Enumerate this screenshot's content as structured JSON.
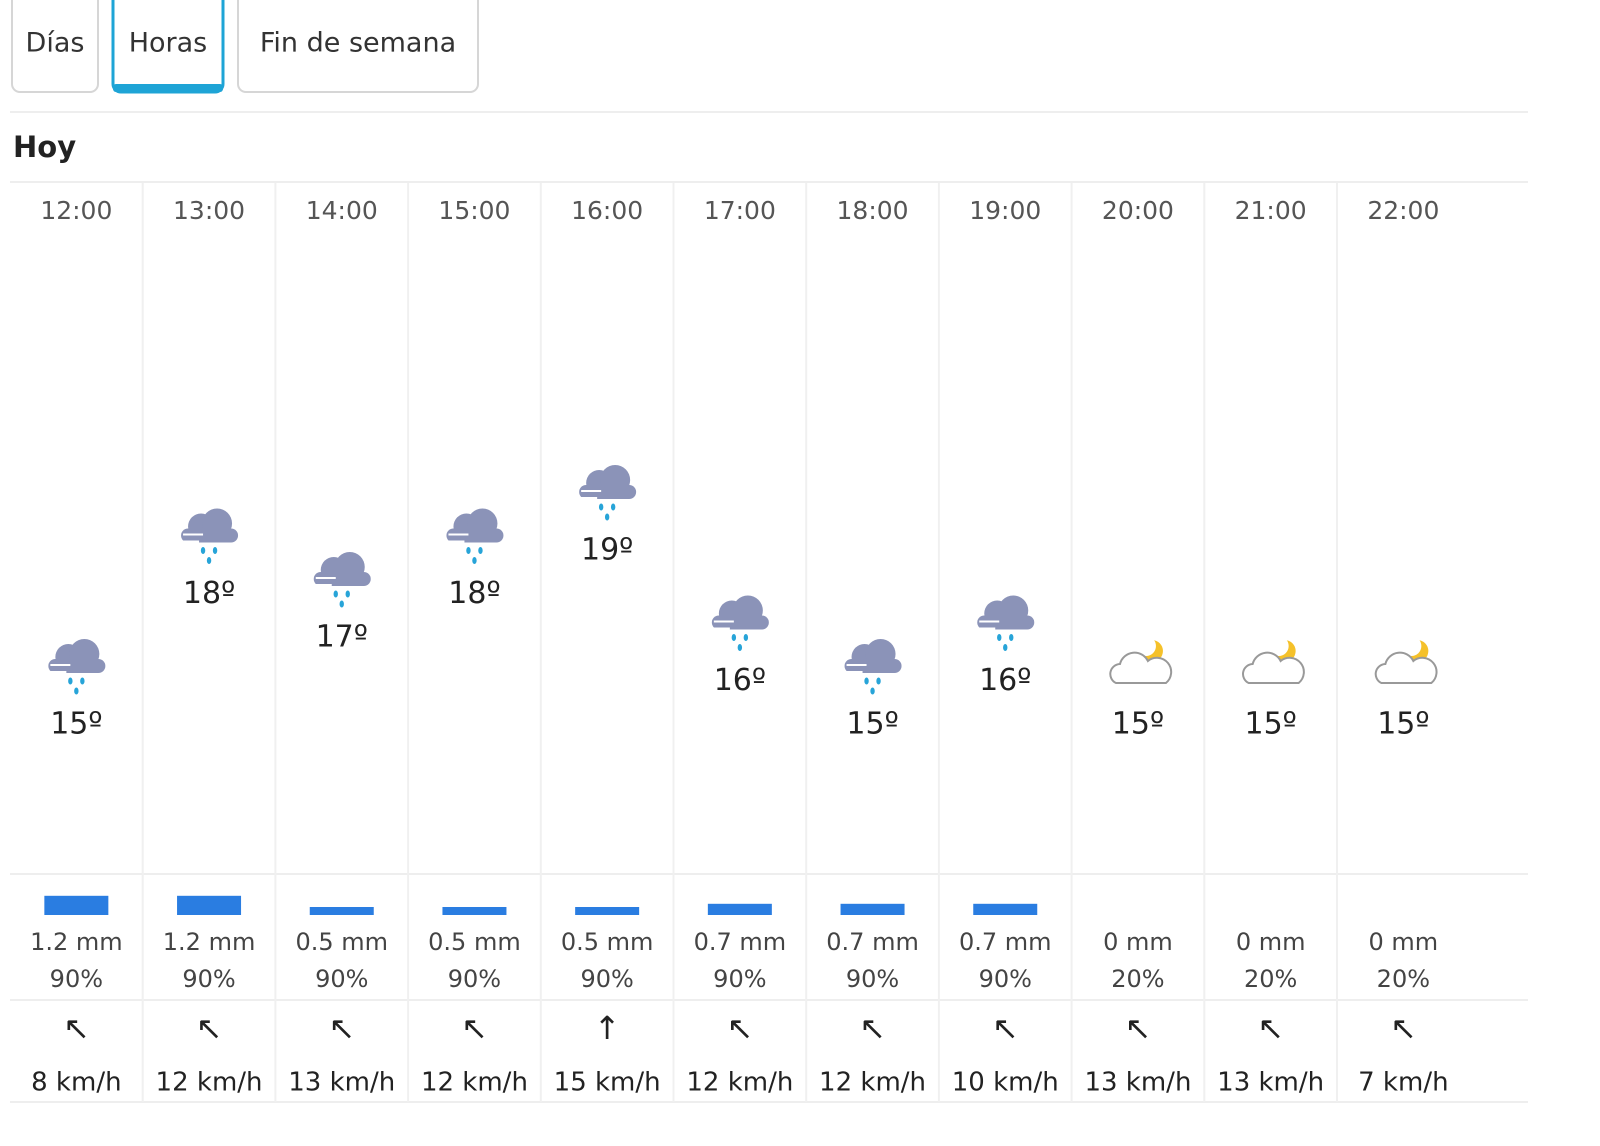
{
  "tabs": [
    {
      "label": "Días",
      "active": false
    },
    {
      "label": "Horas",
      "active": true
    },
    {
      "label": "Fin de semana",
      "active": false
    }
  ],
  "section": "Hoy",
  "hours": [
    {
      "time": "12:00",
      "icon": "rain",
      "temp": {
        "value": 15,
        "label": "15º"
      },
      "precip": {
        "value": 1.2,
        "label": "1.2 mm"
      },
      "probability": "90%",
      "wind_arrow": "↖",
      "wind": "8 km/h"
    },
    {
      "time": "13:00",
      "icon": "rain",
      "temp": {
        "value": 18,
        "label": "18º"
      },
      "precip": {
        "value": 1.2,
        "label": "1.2 mm"
      },
      "probability": "90%",
      "wind_arrow": "↖",
      "wind": "12 km/h"
    },
    {
      "time": "14:00",
      "icon": "rain",
      "temp": {
        "value": 17,
        "label": "17º"
      },
      "precip": {
        "value": 0.5,
        "label": "0.5 mm"
      },
      "probability": "90%",
      "wind_arrow": "↖",
      "wind": "13 km/h"
    },
    {
      "time": "15:00",
      "icon": "rain",
      "temp": {
        "value": 18,
        "label": "18º"
      },
      "precip": {
        "value": 0.5,
        "label": "0.5 mm"
      },
      "probability": "90%",
      "wind_arrow": "↖",
      "wind": "12 km/h"
    },
    {
      "time": "16:00",
      "icon": "rain",
      "temp": {
        "value": 19,
        "label": "19º"
      },
      "precip": {
        "value": 0.5,
        "label": "0.5 mm"
      },
      "probability": "90%",
      "wind_arrow": "↑",
      "wind": "15 km/h"
    },
    {
      "time": "17:00",
      "icon": "rain",
      "temp": {
        "value": 16,
        "label": "16º"
      },
      "precip": {
        "value": 0.7,
        "label": "0.7 mm"
      },
      "probability": "90%",
      "wind_arrow": "↖",
      "wind": "12 km/h"
    },
    {
      "time": "18:00",
      "icon": "rain",
      "temp": {
        "value": 15,
        "label": "15º"
      },
      "precip": {
        "value": 0.7,
        "label": "0.7 mm"
      },
      "probability": "90%",
      "wind_arrow": "↖",
      "wind": "12 km/h"
    },
    {
      "time": "19:00",
      "icon": "rain",
      "temp": {
        "value": 16,
        "label": "16º"
      },
      "precip": {
        "value": 0.7,
        "label": "0.7 mm"
      },
      "probability": "90%",
      "wind_arrow": "↖",
      "wind": "10 km/h"
    },
    {
      "time": "20:00",
      "icon": "night-cloudy",
      "temp": {
        "value": 15,
        "label": "15º"
      },
      "precip": {
        "value": 0,
        "label": "0 mm"
      },
      "probability": "20%",
      "wind_arrow": "↖",
      "wind": "13 km/h"
    },
    {
      "time": "21:00",
      "icon": "night-cloudy",
      "temp": {
        "value": 15,
        "label": "15º"
      },
      "precip": {
        "value": 0,
        "label": "0 mm"
      },
      "probability": "20%",
      "wind_arrow": "↖",
      "wind": "13 km/h"
    },
    {
      "time": "22:00",
      "icon": "night-cloudy",
      "temp": {
        "value": 15,
        "label": "15º"
      },
      "precip": {
        "value": 0,
        "label": "0 mm"
      },
      "probability": "20%",
      "wind_arrow": "↖",
      "wind": "7 km/h"
    }
  ]
}
